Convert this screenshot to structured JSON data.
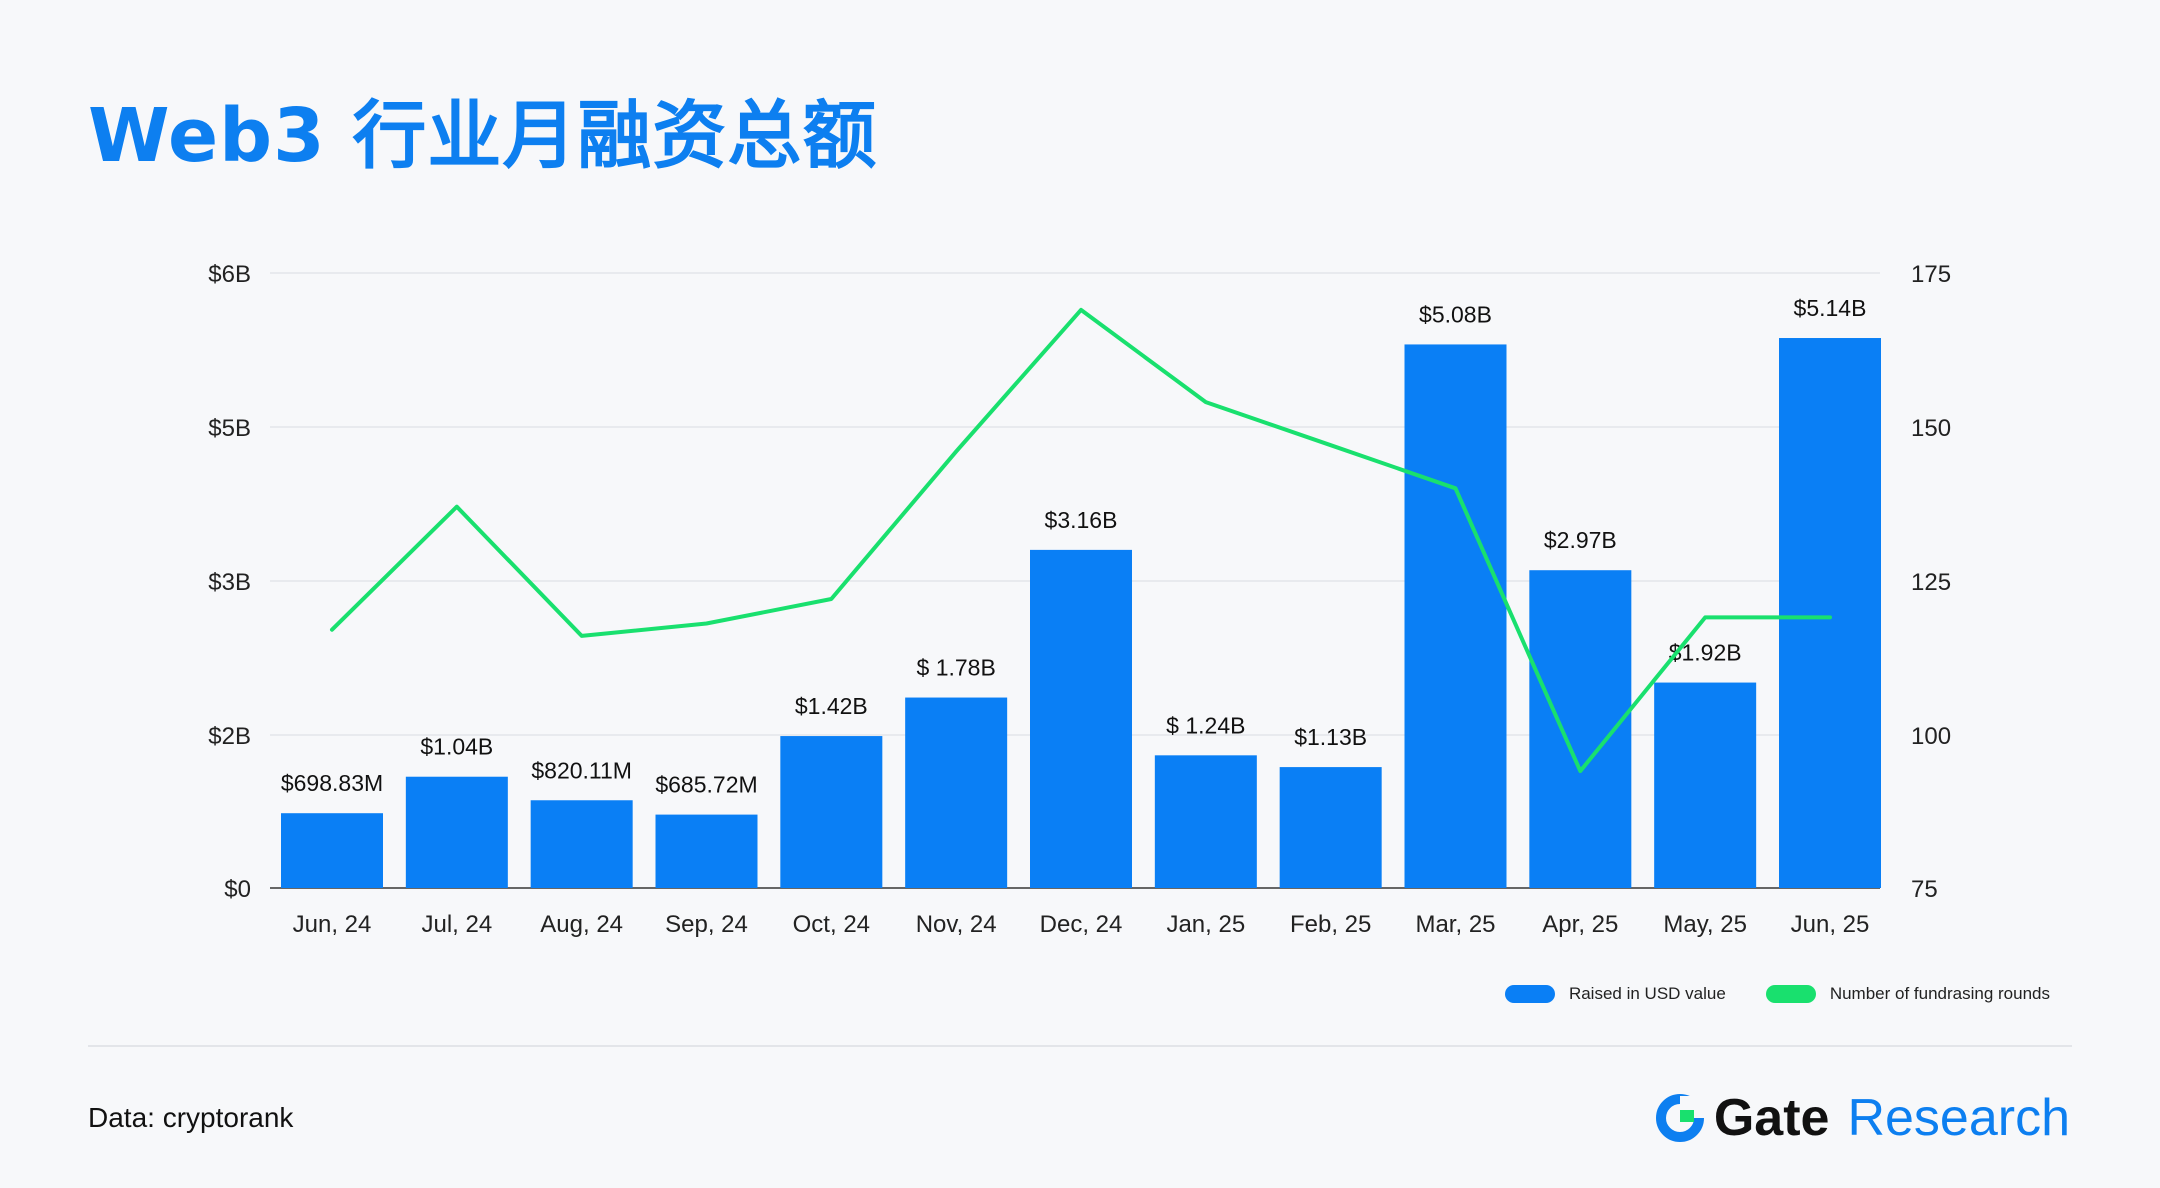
{
  "title": "Web3 行业月融资总额",
  "source": "Data: cryptorank",
  "brand": {
    "name": "Gate",
    "suffix": "Research"
  },
  "legend": [
    {
      "label": "Raised in USD value",
      "color": "#0a7ff5"
    },
    {
      "label": "Number of fundrasing rounds",
      "color": "#19e06e"
    }
  ],
  "chart_data": {
    "type": "bar",
    "title": "Web3 行业月融资总额",
    "categories": [
      "Jun, 24",
      "Jul, 24",
      "Aug, 24",
      "Sep, 24",
      "Oct, 24",
      "Nov, 24",
      "Dec, 24",
      "Jan, 25",
      "Feb, 25",
      "Mar, 25",
      "Apr, 25",
      "May, 25",
      "Jun, 25"
    ],
    "left_axis": {
      "ticks": [
        "$6B",
        "$5B",
        "$3B",
        "$2B",
        "$0"
      ],
      "range": [
        0,
        6
      ]
    },
    "right_axis": {
      "ticks": [
        "175",
        "150",
        "125",
        "100",
        "75"
      ],
      "range": [
        75,
        175
      ]
    },
    "grid": true,
    "legend_position": "bottom-right",
    "series": [
      {
        "name": "Raised in USD value",
        "type": "bar",
        "axis": "left",
        "color": "#0a7ff5",
        "values": [
          0.699,
          1.04,
          0.82,
          0.686,
          1.42,
          1.78,
          3.16,
          1.24,
          1.13,
          5.08,
          2.97,
          1.92,
          5.14
        ],
        "labels": [
          "$698.83M",
          "$1.04B",
          "$820.11M",
          "$685.72M",
          "$1.42B",
          "$ 1.78B",
          "$3.16B",
          "$ 1.24B",
          "$1.13B",
          "$5.08B",
          "$2.97B",
          "$1.92B",
          "$5.14B"
        ]
      },
      {
        "name": "Number of fundrasing rounds",
        "type": "line",
        "axis": "right",
        "color": "#19e06e",
        "values": [
          117,
          137,
          116,
          118,
          122,
          146,
          169,
          154,
          147,
          140,
          94,
          119,
          119
        ]
      }
    ]
  }
}
